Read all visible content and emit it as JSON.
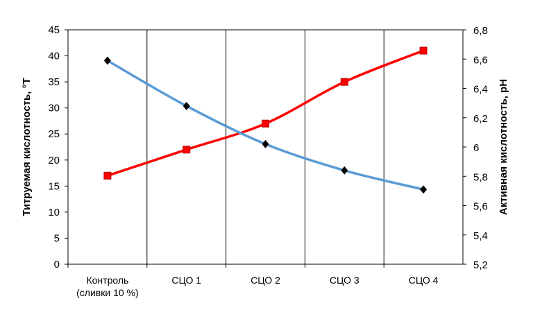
{
  "chart_data": {
    "type": "line",
    "categories": [
      [
        "Контроль",
        "(сливки 10 %)"
      ],
      [
        "СЦО 1"
      ],
      [
        "СЦО 2"
      ],
      [
        "СЦО 3"
      ],
      [
        "СЦО 4"
      ]
    ],
    "ylabel_left": "Титруемая кислотность, °Т",
    "ylabel_right": "Активная кислотность, pH",
    "ylim_left": [
      0,
      45
    ],
    "ylim_right": [
      5.2,
      6.8
    ],
    "yticks_left": [
      "0",
      "5",
      "10",
      "15",
      "20",
      "25",
      "30",
      "35",
      "40",
      "45"
    ],
    "yticks_right": [
      "5,2",
      "5,4",
      "5,6",
      "5,8",
      "6",
      "6,2",
      "6,4",
      "6,6",
      "6,8"
    ],
    "grid": "vertical category lines",
    "series": [
      {
        "axis": "left",
        "color": "#ff0000",
        "marker": "square",
        "values": [
          17,
          22,
          27,
          35,
          41
        ]
      },
      {
        "axis": "right",
        "color": "#5b9bd5",
        "marker": "diamond",
        "values": [
          6.59,
          6.28,
          6.02,
          5.84,
          5.71
        ]
      }
    ]
  }
}
